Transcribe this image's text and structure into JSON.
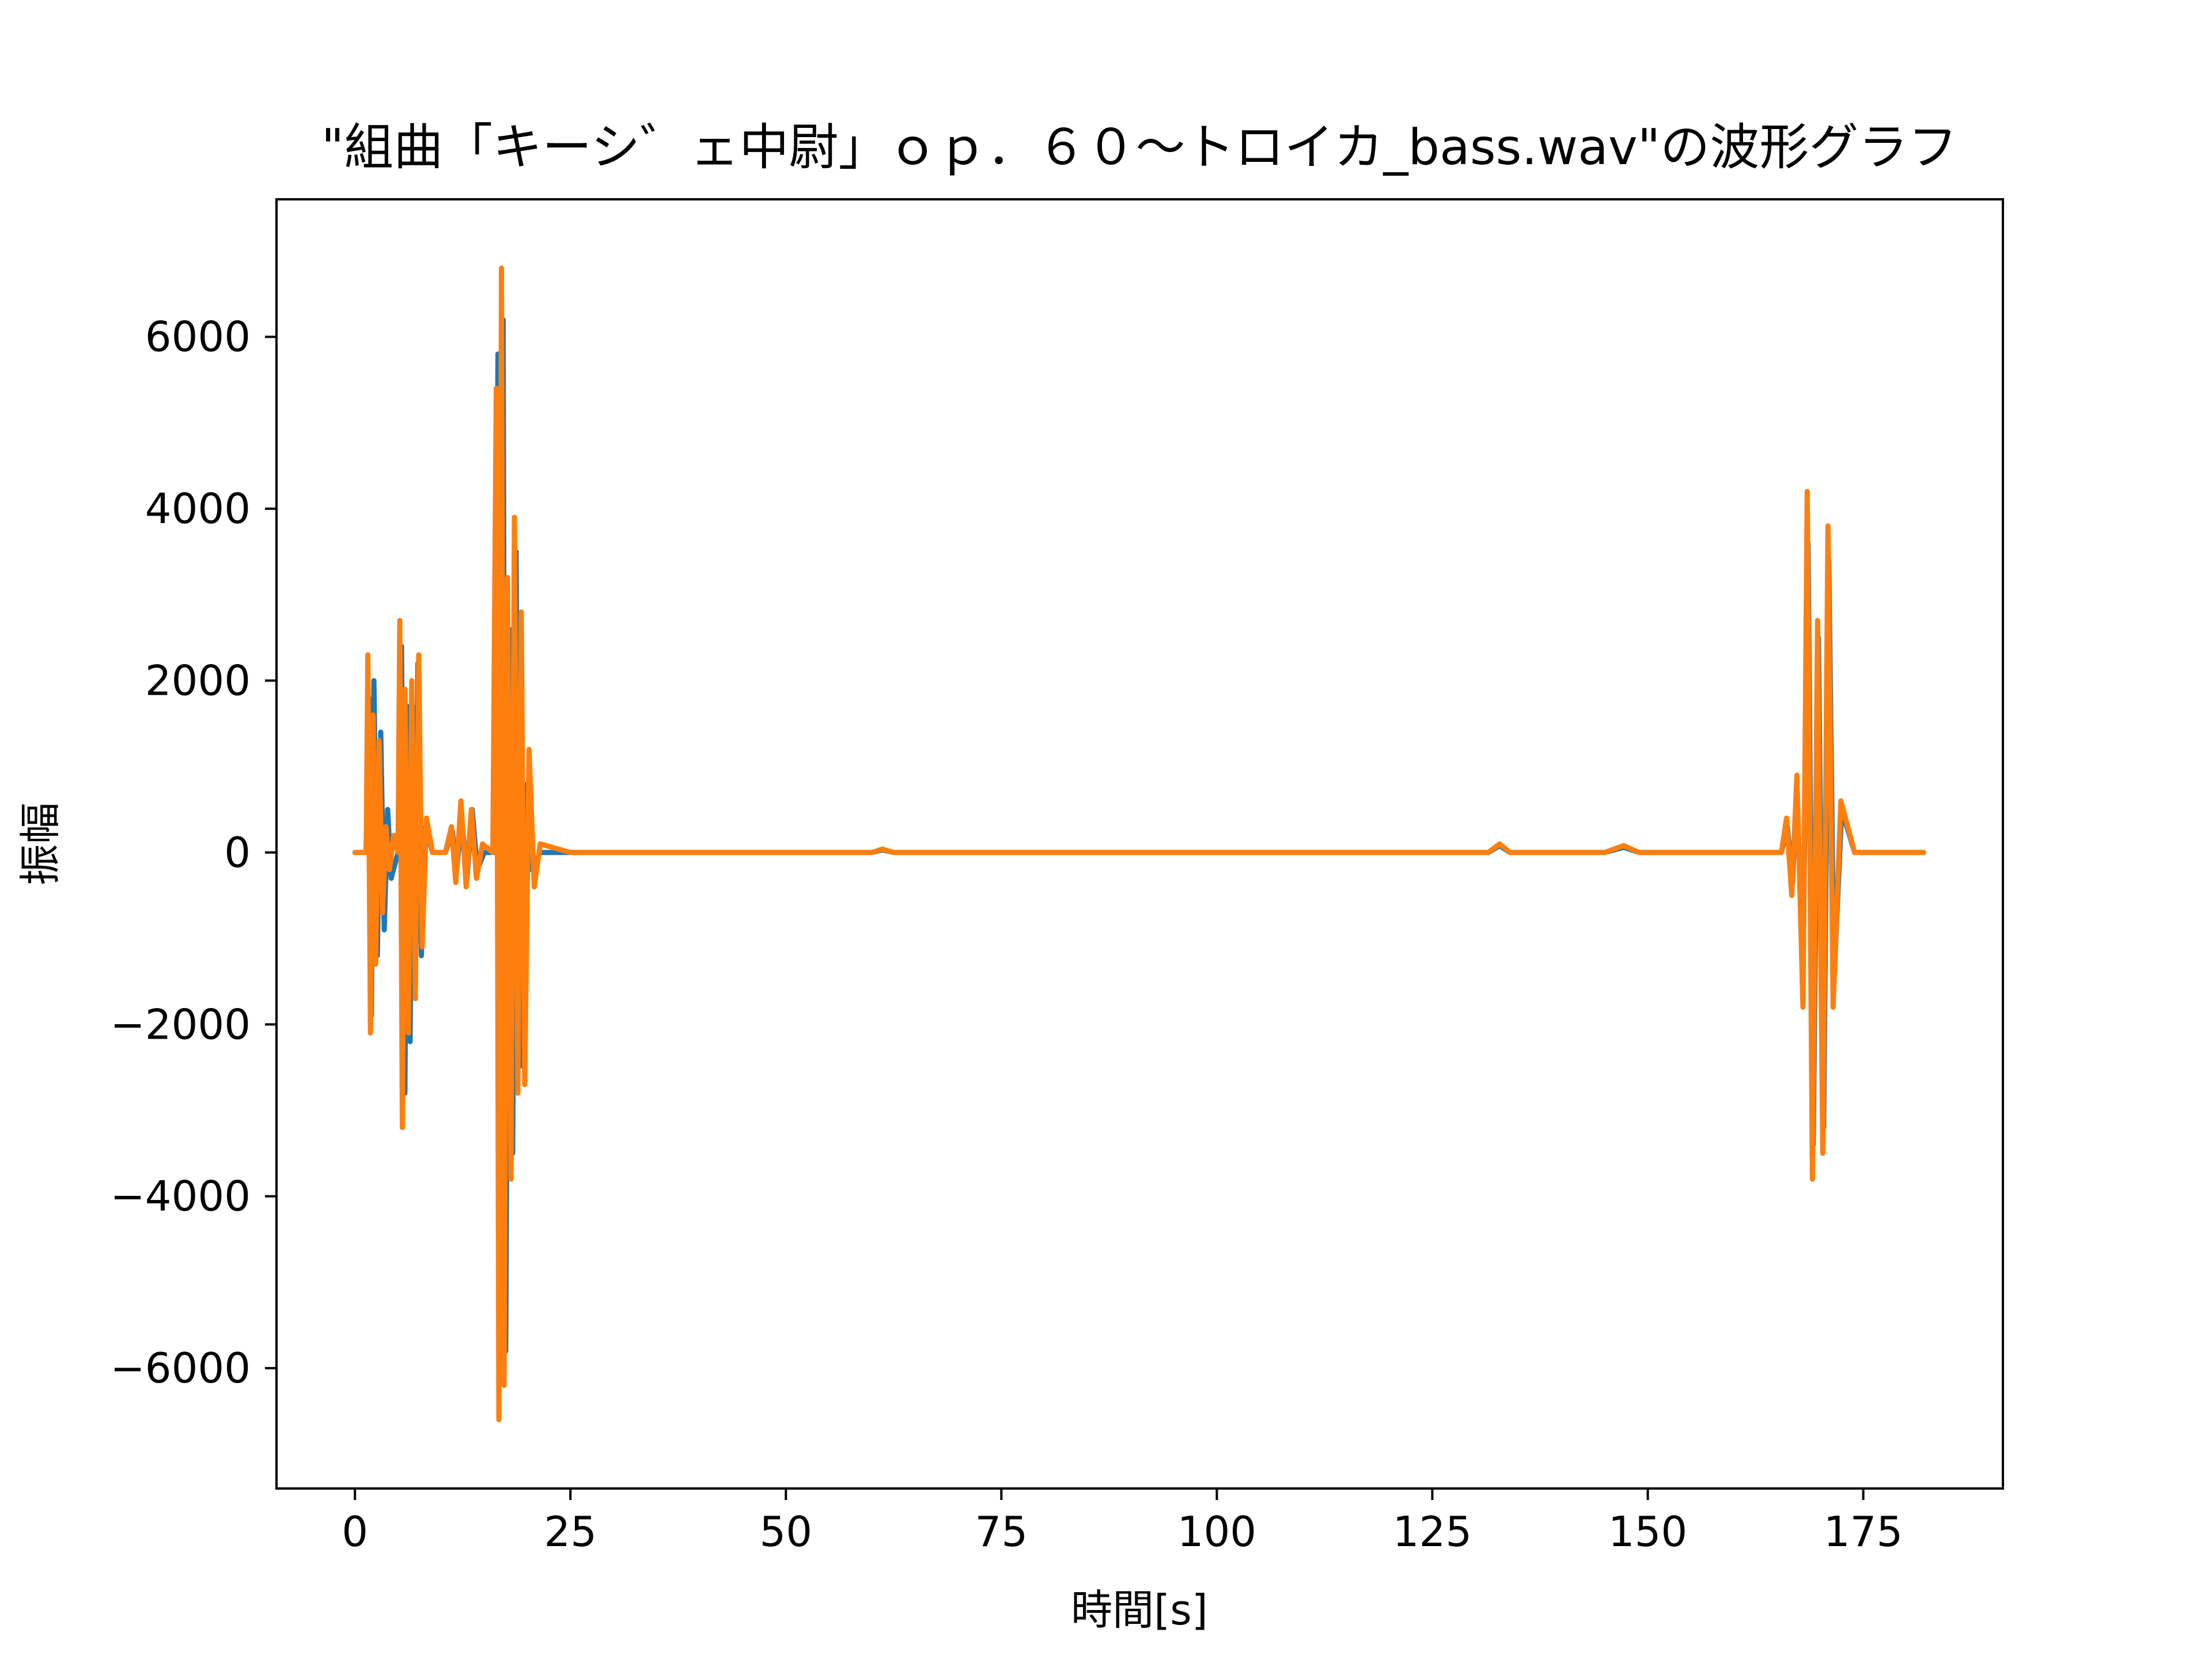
{
  "chart_data": {
    "type": "line",
    "title": "\"組曲「キーシ゛ェ中尉」ｏｐ．６０～トロイカ_bass.wav\"の波形グラフ",
    "xlabel": "時間[s]",
    "ylabel": "振幅",
    "xlim": [
      -9.1,
      191.2
    ],
    "ylim": [
      -7400,
      7600
    ],
    "xticks": [
      0,
      25,
      50,
      75,
      100,
      125,
      150,
      175
    ],
    "xtick_labels": [
      "0",
      "25",
      "50",
      "75",
      "100",
      "125",
      "150",
      "175"
    ],
    "yticks": [
      -6000,
      -4000,
      -2000,
      0,
      2000,
      4000,
      6000
    ],
    "ytick_labels": [
      "−6000",
      "−4000",
      "−2000",
      "0",
      "2000",
      "4000",
      "6000"
    ],
    "grid": false,
    "series": [
      {
        "color": "#1f77b4",
        "x": [
          0,
          1.3,
          1.6,
          1.9,
          2.2,
          2.6,
          3.0,
          3.4,
          3.8,
          4.2,
          5.0,
          5.4,
          5.8,
          6.1,
          6.4,
          6.7,
          7.0,
          7.3,
          7.7,
          8.2,
          9.0,
          10.5,
          11.3,
          11.8,
          12.4,
          13.0,
          13.6,
          14.2,
          15.0,
          16.2,
          16.6,
          16.9,
          17.2,
          17.5,
          17.9,
          18.3,
          18.7,
          19.0,
          19.3,
          19.6,
          20.0,
          20.5,
          21.5,
          25,
          60,
          61.2,
          62.5,
          80,
          88,
          100,
          131.5,
          132.8,
          134,
          145,
          147.2,
          149,
          165.5,
          166.2,
          166.8,
          167.3,
          168.0,
          168.6,
          169.2,
          169.8,
          170.4,
          171.0,
          171.6,
          172.5,
          174,
          176,
          182
        ],
        "y": [
          0,
          0,
          1800,
          -1900,
          2000,
          -1200,
          1400,
          -900,
          500,
          -300,
          0,
          2400,
          -2800,
          1700,
          -2200,
          1700,
          -1700,
          2200,
          -1200,
          300,
          0,
          0,
          250,
          -200,
          400,
          -300,
          500,
          -200,
          0,
          0,
          5800,
          -6000,
          6200,
          -5800,
          2600,
          -3500,
          3500,
          -2500,
          2600,
          -2500,
          800,
          -200,
          0,
          0,
          0,
          30,
          0,
          0,
          0,
          0,
          0,
          80,
          0,
          0,
          60,
          0,
          0,
          300,
          -350,
          800,
          -1500,
          3600,
          -3400,
          2500,
          -3200,
          3400,
          -1500,
          500,
          0,
          0,
          0
        ]
      },
      {
        "color": "#ff7f0e",
        "x": [
          0,
          1.3,
          1.5,
          1.8,
          2.1,
          2.4,
          2.8,
          3.2,
          3.6,
          4.0,
          4.5,
          5.0,
          5.2,
          5.5,
          5.8,
          6.2,
          6.6,
          7.0,
          7.4,
          7.8,
          8.3,
          9.0,
          10.5,
          11.2,
          11.7,
          12.3,
          12.9,
          13.5,
          14.1,
          14.8,
          16.0,
          16.4,
          16.7,
          17.0,
          17.3,
          17.7,
          18.1,
          18.5,
          18.9,
          19.3,
          19.7,
          20.2,
          20.8,
          21.5,
          25,
          60,
          61.2,
          62.5,
          80,
          88,
          100,
          131.5,
          132.8,
          134,
          145,
          147.2,
          149,
          165.5,
          166.1,
          166.7,
          167.3,
          168.0,
          168.5,
          169.1,
          169.7,
          170.3,
          170.9,
          171.5,
          172.4,
          174,
          176,
          182
        ],
        "y": [
          0,
          0,
          2300,
          -2100,
          1600,
          -1300,
          1300,
          -700,
          300,
          -200,
          200,
          0,
          2700,
          -3200,
          1900,
          -2100,
          2000,
          -1700,
          2300,
          -1100,
          400,
          0,
          0,
          300,
          -350,
          600,
          -400,
          500,
          -300,
          100,
          0,
          5400,
          -6600,
          6800,
          -6200,
          3200,
          -3800,
          3900,
          -2800,
          2800,
          -2700,
          1200,
          -400,
          100,
          0,
          0,
          40,
          0,
          0,
          0,
          0,
          0,
          100,
          0,
          0,
          80,
          0,
          0,
          400,
          -500,
          900,
          -1800,
          4200,
          -3800,
          2700,
          -3500,
          3800,
          -1800,
          600,
          0,
          0,
          0
        ]
      }
    ]
  }
}
